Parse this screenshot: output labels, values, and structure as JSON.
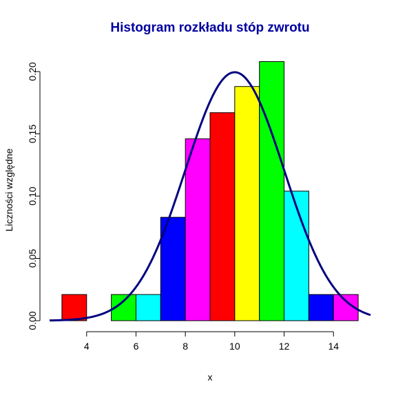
{
  "colors": {
    "title": "#0000A0",
    "curve": "#000080"
  },
  "chart_data": {
    "type": "bar",
    "title": "Histogram rozkładu stóp zwrotu",
    "xlabel": "x",
    "ylabel": "Liczności względne",
    "xlim": [
      2.5,
      15.5
    ],
    "ylim": [
      0,
      0.2
    ],
    "x_ticks": [
      4,
      6,
      8,
      10,
      12,
      14
    ],
    "y_ticks": [
      "0.00",
      "0.05",
      "0.10",
      "0.15",
      "0.20"
    ],
    "bins": [
      {
        "from": 3,
        "to": 4,
        "value": 0.021,
        "color": "#FF0000"
      },
      {
        "from": 5,
        "to": 6,
        "value": 0.021,
        "color": "#00FF00"
      },
      {
        "from": 6,
        "to": 7,
        "value": 0.021,
        "color": "#00FFFF"
      },
      {
        "from": 7,
        "to": 8,
        "value": 0.083,
        "color": "#0000FF"
      },
      {
        "from": 8,
        "to": 9,
        "value": 0.146,
        "color": "#FF00FF"
      },
      {
        "from": 9,
        "to": 10,
        "value": 0.167,
        "color": "#FF0000"
      },
      {
        "from": 10,
        "to": 11,
        "value": 0.188,
        "color": "#FFFF00"
      },
      {
        "from": 11,
        "to": 12,
        "value": 0.208,
        "color": "#00FF00"
      },
      {
        "from": 12,
        "to": 13,
        "value": 0.104,
        "color": "#00FFFF"
      },
      {
        "from": 13,
        "to": 14,
        "value": 0.021,
        "color": "#0000FF"
      },
      {
        "from": 14,
        "to": 15,
        "value": 0.021,
        "color": "#FF00FF"
      }
    ],
    "density_curve": {
      "type": "normal",
      "mean": 10,
      "sd": 2,
      "x_range": [
        2.5,
        15.5
      ]
    }
  }
}
